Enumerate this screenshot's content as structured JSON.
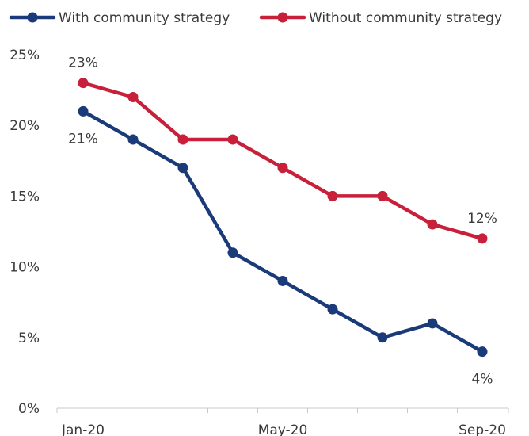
{
  "chart_data": {
    "type": "line",
    "title": "",
    "xlabel": "",
    "ylabel": "",
    "categories": [
      "Jan-20",
      "Feb-20",
      "Mar-20",
      "Apr-20",
      "May-20",
      "Jun-20",
      "Jul-20",
      "Aug-20",
      "Sep-20"
    ],
    "x_tick_labels": [
      "Jan-20",
      "",
      "",
      "",
      "May-20",
      "",
      "",
      "",
      "Sep-20"
    ],
    "y_ticks": [
      0,
      5,
      10,
      15,
      20,
      25
    ],
    "y_tick_labels": [
      "0%",
      "5%",
      "10%",
      "15%",
      "20%",
      "25%"
    ],
    "ylim": [
      0,
      25
    ],
    "grid": false,
    "legend_position": "top",
    "series": [
      {
        "name": "With community strategy",
        "color": "#1b3a7a",
        "values": [
          21,
          19,
          17,
          11,
          9,
          7,
          5,
          6,
          4
        ]
      },
      {
        "name": "Without community strategy",
        "color": "#c8203a",
        "values": [
          23,
          22,
          19,
          19,
          17,
          15,
          15,
          13,
          12
        ]
      }
    ],
    "annotations": [
      {
        "series": 1,
        "index": 0,
        "text": "23%"
      },
      {
        "series": 0,
        "index": 0,
        "text": "21%"
      },
      {
        "series": 1,
        "index": 8,
        "text": "12%"
      },
      {
        "series": 0,
        "index": 8,
        "text": "4%"
      }
    ]
  }
}
